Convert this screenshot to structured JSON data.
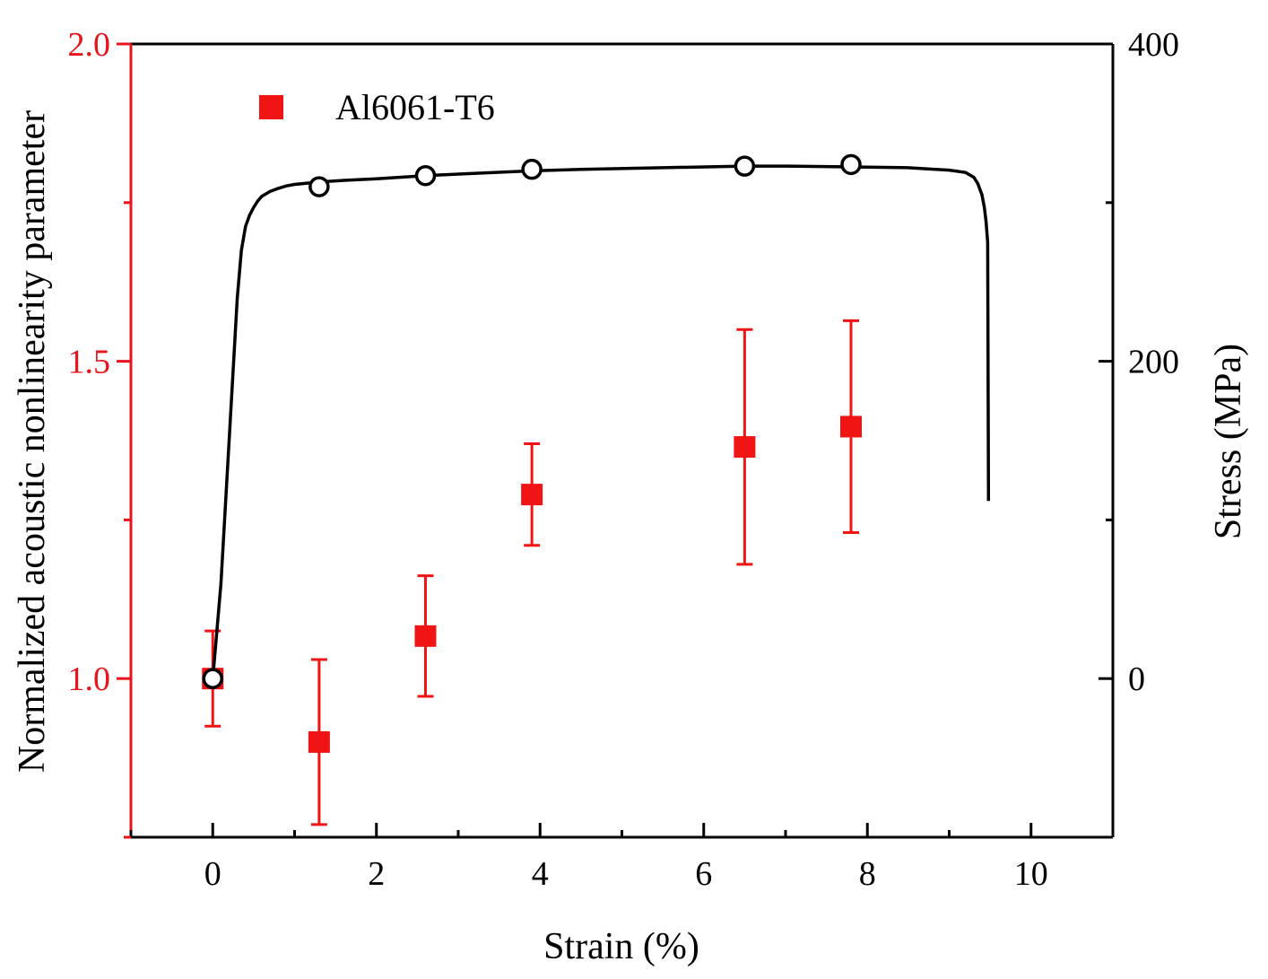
{
  "chart_data": {
    "type": "scatter",
    "title": "",
    "xlabel": "Strain (%)",
    "ylabel_left": "Normalized acoustic nonlinearity parameter",
    "ylabel_right": "Stress (MPa)",
    "xlim": [
      -1,
      11
    ],
    "ylim_left": [
      0.75,
      2.0
    ],
    "ylim_right": [
      -100,
      400
    ],
    "x_ticks": [
      0,
      2,
      4,
      6,
      8,
      10
    ],
    "x_tick_labels": [
      "0",
      "2",
      "4",
      "6",
      "8",
      "10"
    ],
    "x_minor_ticks": [
      -1,
      1,
      3,
      5,
      7,
      9,
      11
    ],
    "y_left_ticks": [
      1.0,
      1.5,
      2.0
    ],
    "y_left_tick_labels": [
      "1.0",
      "1.5",
      "2.0"
    ],
    "y_left_minor_ticks": [
      0.75,
      1.25,
      1.75
    ],
    "y_right_ticks": [
      0,
      200,
      400
    ],
    "y_right_tick_labels": [
      "0",
      "200",
      "400"
    ],
    "y_right_minor_ticks": [
      -100,
      100,
      300
    ],
    "left_axis_color": "#e8141b",
    "right_axis_color": "#000000",
    "legend_position": "top-left",
    "series": [
      {
        "name": "Al6061-T6",
        "kind": "scatter-errorbar",
        "axis": "left",
        "color": "#f01414",
        "marker": "square",
        "x": [
          0,
          1.3,
          2.6,
          3.9,
          6.5,
          7.8
        ],
        "y": [
          1.0,
          0.9,
          1.067,
          1.29,
          1.365,
          1.397
        ],
        "err": [
          0.075,
          0.13,
          0.095,
          0.08,
          0.185,
          0.167
        ]
      },
      {
        "name": "Stress-strain curve",
        "kind": "line",
        "axis": "right",
        "color": "#000000",
        "x": [
          0,
          0.1,
          0.2,
          0.3,
          0.35,
          0.4,
          0.45,
          0.5,
          0.55,
          0.6,
          0.7,
          0.8,
          0.9,
          1.0,
          1.1,
          1.3,
          1.6,
          2.0,
          2.6,
          3.0,
          3.9,
          4.5,
          5.5,
          6.5,
          7.0,
          7.8,
          8.5,
          9.0,
          9.2,
          9.3,
          9.35,
          9.4,
          9.43,
          9.45,
          9.47,
          9.48
        ],
        "y": [
          0,
          60,
          150,
          240,
          270,
          285,
          292,
          297,
          301,
          304,
          307,
          309,
          310.5,
          311.5,
          312,
          313,
          314,
          315,
          317,
          318,
          320,
          321,
          322,
          323,
          323,
          322.5,
          322,
          320.5,
          319,
          316,
          312,
          305,
          297,
          288,
          275,
          112
        ]
      },
      {
        "name": "Stress markers",
        "kind": "scatter",
        "axis": "right",
        "color": "#000000",
        "marker": "open-circle",
        "x": [
          0,
          1.3,
          2.6,
          3.9,
          6.5,
          7.8
        ],
        "y": [
          0,
          310,
          317,
          321,
          323,
          324
        ]
      }
    ]
  }
}
